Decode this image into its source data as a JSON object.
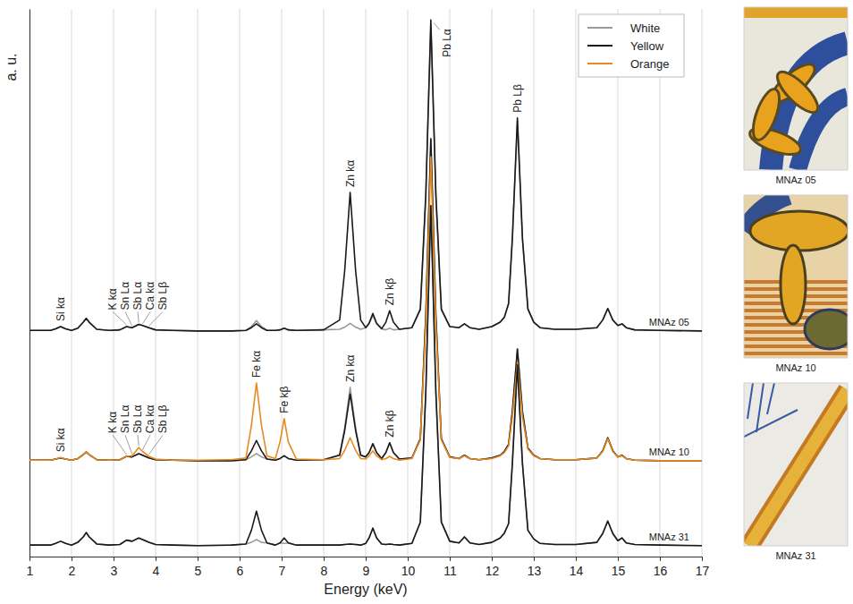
{
  "chart_data": {
    "type": "line",
    "xlabel": "Energy (keV)",
    "ylabel": "a. u.",
    "xlim": [
      1,
      17
    ],
    "ylim": [
      0,
      100
    ],
    "xticks": [
      1,
      2,
      3,
      4,
      5,
      6,
      7,
      8,
      9,
      10,
      11,
      12,
      13,
      14,
      15,
      16,
      17
    ],
    "grid": true,
    "legend": "upper right",
    "tick_labels": "x",
    "x": [
      1.0,
      1.5,
      1.62,
      1.74,
      1.86,
      2.0,
      2.15,
      2.28,
      2.35,
      2.42,
      2.6,
      2.9,
      3.15,
      3.31,
      3.44,
      3.6,
      3.69,
      3.84,
      4.0,
      4.4,
      5.0,
      5.8,
      6.15,
      6.28,
      6.4,
      6.52,
      6.65,
      6.85,
      6.96,
      7.06,
      7.16,
      7.35,
      8.0,
      8.38,
      8.5,
      8.63,
      8.76,
      8.88,
      9.0,
      9.08,
      9.17,
      9.26,
      9.38,
      9.48,
      9.57,
      9.66,
      9.8,
      10.1,
      10.3,
      10.43,
      10.55,
      10.67,
      10.8,
      11.0,
      11.22,
      11.35,
      11.48,
      11.7,
      12.0,
      12.2,
      12.3,
      12.4,
      12.49,
      12.61,
      12.73,
      12.86,
      13.0,
      13.15,
      13.5,
      14.0,
      14.5,
      14.64,
      14.76,
      14.88,
      15.0,
      15.1,
      15.2,
      15.4,
      16.0,
      17.0
    ],
    "samples": [
      {
        "name": "MNAz 05",
        "series": [
          {
            "name": "White",
            "color": "#9a9a9a",
            "values": [
              41.3,
              41.3,
              41.6,
              42.0,
              41.6,
              41.3,
              41.7,
              42.8,
              43.5,
              42.8,
              41.5,
              41.3,
              41.4,
              42.0,
              41.8,
              42.4,
              42.2,
              41.8,
              41.4,
              41.3,
              41.2,
              41.2,
              41.3,
              42.0,
              43.1,
              42.0,
              41.3,
              41.3,
              41.4,
              41.7,
              41.4,
              41.3,
              41.4,
              41.5,
              41.9,
              42.6,
              41.9,
              41.5,
              41.8,
              42.5,
              44.0,
              42.5,
              41.6,
              41.4,
              41.7,
              41.4,
              41.5,
              41.8,
              45.0,
              65.5,
              97.0,
              65.5,
              45.0,
              42.0,
              41.8,
              42.5,
              41.8,
              41.5,
              42.0,
              42.8,
              43.7,
              46.2,
              57.8,
              79.5,
              57.8,
              45.2,
              42.8,
              41.8,
              41.5,
              41.5,
              41.8,
              43.2,
              45.3,
              43.2,
              42.2,
              42.5,
              41.8,
              41.4,
              41.3,
              41.2
            ]
          },
          {
            "name": "Yellow",
            "color": "#1a1a1a",
            "values": [
              41.3,
              41.3,
              41.6,
              42.0,
              41.6,
              41.3,
              41.7,
              42.8,
              43.5,
              42.8,
              41.5,
              41.3,
              41.4,
              42.0,
              41.8,
              42.4,
              42.2,
              41.8,
              41.4,
              41.3,
              41.2,
              41.2,
              41.3,
              41.8,
              42.5,
              41.8,
              41.3,
              41.3,
              41.4,
              41.7,
              41.4,
              41.3,
              41.4,
              43.2,
              52.2,
              66.5,
              52.2,
              43.2,
              41.8,
              42.6,
              44.4,
              42.6,
              41.6,
              42.8,
              44.9,
              42.8,
              41.5,
              41.8,
              45.2,
              66.2,
              98.0,
              66.2,
              45.2,
              42.0,
              41.8,
              42.5,
              41.8,
              41.5,
              42.0,
              42.8,
              43.7,
              46.2,
              58.2,
              80.1,
              58.2,
              45.2,
              42.8,
              41.8,
              41.5,
              41.5,
              41.8,
              43.2,
              45.3,
              43.2,
              42.2,
              42.5,
              41.8,
              41.4,
              41.3,
              41.2
            ]
          }
        ],
        "peaks": [
          {
            "label": "Si kα",
            "x": 1.74
          },
          {
            "label": "K kα",
            "x": 3.31
          },
          {
            "label": "Sn Lα",
            "x": 3.44
          },
          {
            "label": "Sb Lα",
            "x": 3.6
          },
          {
            "label": "Ca kα",
            "x": 3.69
          },
          {
            "label": "Sb Lβ",
            "x": 3.84
          },
          {
            "label": "Zn kα",
            "x": 8.63
          },
          {
            "label": "Zn kβ",
            "x": 9.57
          },
          {
            "label": "Pb Lα",
            "x": 10.55
          },
          {
            "label": "Pb Lβ",
            "x": 12.61
          }
        ]
      },
      {
        "name": "MNAz 10",
        "series": [
          {
            "name": "White",
            "color": "#9a9a9a",
            "values": [
              17.6,
              17.6,
              17.8,
              18.0,
              17.8,
              17.6,
              17.9,
              18.6,
              19.1,
              18.6,
              17.7,
              17.6,
              17.7,
              18.3,
              18.2,
              18.8,
              18.5,
              18.0,
              17.7,
              17.6,
              17.5,
              17.5,
              17.7,
              18.2,
              18.8,
              18.2,
              17.8,
              17.6,
              17.9,
              18.4,
              17.9,
              17.6,
              17.7,
              18.6,
              23.5,
              30.9,
              23.5,
              18.6,
              18.2,
              19.0,
              20.6,
              19.0,
              17.9,
              19.0,
              20.8,
              19.0,
              17.8,
              18.0,
              21.5,
              44.0,
              76.3,
              44.0,
              21.5,
              18.2,
              17.9,
              18.5,
              17.9,
              17.7,
              18.0,
              18.5,
              19.2,
              20.5,
              26.5,
              37.9,
              26.5,
              19.8,
              18.5,
              17.9,
              17.7,
              17.7,
              18.0,
              19.3,
              21.7,
              19.3,
              18.2,
              18.5,
              17.9,
              17.6,
              17.5,
              17.5
            ]
          },
          {
            "name": "Yellow",
            "color": "#1a1a1a",
            "values": [
              17.6,
              17.6,
              17.8,
              18.0,
              17.8,
              17.6,
              17.9,
              18.6,
              19.1,
              18.6,
              17.7,
              17.6,
              17.7,
              18.3,
              18.2,
              18.8,
              18.5,
              18.0,
              17.7,
              17.6,
              17.5,
              17.5,
              17.7,
              19.3,
              21.2,
              19.3,
              17.8,
              17.6,
              17.9,
              18.4,
              17.9,
              17.6,
              17.7,
              18.5,
              23.0,
              29.7,
              23.0,
              18.5,
              18.2,
              19.0,
              20.6,
              19.0,
              17.9,
              19.0,
              20.8,
              19.0,
              17.8,
              18.0,
              21.5,
              44.0,
              76.3,
              44.0,
              21.5,
              18.2,
              17.9,
              18.5,
              17.9,
              17.7,
              18.0,
              18.5,
              19.2,
              20.5,
              26.5,
              37.9,
              26.5,
              19.8,
              18.5,
              17.9,
              17.7,
              17.7,
              18.0,
              19.3,
              21.7,
              19.3,
              18.2,
              18.5,
              17.9,
              17.6,
              17.5,
              17.5
            ]
          },
          {
            "name": "Orange",
            "color": "#e8891f",
            "values": [
              17.6,
              17.6,
              17.8,
              18.1,
              17.8,
              17.6,
              17.9,
              18.6,
              19.1,
              18.6,
              17.7,
              17.6,
              17.7,
              18.3,
              18.4,
              19.9,
              19.2,
              18.3,
              17.8,
              17.6,
              17.6,
              17.7,
              18.0,
              23.9,
              31.7,
              23.9,
              18.4,
              17.9,
              20.9,
              25.2,
              20.9,
              17.8,
              17.7,
              17.9,
              19.4,
              21.7,
              19.4,
              17.9,
              17.8,
              18.4,
              19.3,
              18.4,
              17.7,
              17.9,
              18.3,
              17.9,
              17.6,
              17.9,
              21.3,
              42.5,
              73.0,
              42.5,
              21.3,
              18.1,
              17.9,
              18.4,
              17.9,
              17.7,
              17.9,
              18.4,
              19.0,
              20.2,
              25.5,
              35.5,
              25.5,
              19.6,
              18.4,
              17.9,
              17.7,
              17.7,
              18.0,
              19.2,
              21.5,
              19.2,
              18.2,
              18.4,
              17.9,
              17.6,
              17.5,
              17.5
            ]
          }
        ],
        "peaks": [
          {
            "label": "Si kα",
            "x": 1.74
          },
          {
            "label": "K kα",
            "x": 3.31
          },
          {
            "label": "Sn Lα",
            "x": 3.44
          },
          {
            "label": "Sb Lα",
            "x": 3.6
          },
          {
            "label": "Ca kα",
            "x": 3.69
          },
          {
            "label": "Sb Lβ",
            "x": 3.84
          },
          {
            "label": "Fe kα",
            "x": 6.4
          },
          {
            "label": "Fe kβ",
            "x": 7.06
          },
          {
            "label": "Zn kα",
            "x": 8.63
          },
          {
            "label": "Zn kβ",
            "x": 9.57
          }
        ]
      },
      {
        "name": "MNAz 31",
        "series": [
          {
            "name": "White",
            "color": "#9a9a9a",
            "values": [
              2.1,
              2.1,
              2.4,
              2.8,
              2.4,
              2.1,
              2.6,
              3.6,
              4.4,
              3.6,
              2.3,
              2.1,
              2.2,
              3.0,
              2.8,
              3.4,
              3.1,
              2.6,
              2.2,
              2.1,
              2.0,
              2.1,
              2.3,
              2.6,
              3.1,
              2.6,
              2.5,
              2.1,
              2.5,
              2.4,
              2.5,
              2.1,
              2.1,
              2.1,
              2.2,
              2.3,
              2.2,
              2.1,
              2.4,
              3.4,
              5.2,
              3.4,
              2.3,
              2.2,
              2.3,
              2.2,
              2.1,
              2.4,
              6.3,
              30.0,
              64.1,
              30.0,
              6.3,
              2.8,
              2.5,
              3.6,
              2.5,
              2.2,
              2.6,
              3.4,
              4.3,
              6.0,
              17.0,
              35.0,
              17.0,
              4.8,
              3.2,
              2.4,
              2.2,
              2.2,
              2.6,
              4.2,
              6.5,
              4.2,
              2.9,
              3.4,
              2.5,
              2.2,
              2.1,
              2.0
            ]
          },
          {
            "name": "Yellow",
            "color": "#1a1a1a",
            "values": [
              2.1,
              2.1,
              2.4,
              2.8,
              2.4,
              2.1,
              2.6,
              3.6,
              4.4,
              3.6,
              2.3,
              2.1,
              2.2,
              3.0,
              2.8,
              3.4,
              3.1,
              2.6,
              2.2,
              2.1,
              2.0,
              2.1,
              2.3,
              4.8,
              8.3,
              4.8,
              2.5,
              2.1,
              2.5,
              3.4,
              2.5,
              2.1,
              2.1,
              2.1,
              2.2,
              2.3,
              2.2,
              2.1,
              2.4,
              3.4,
              5.2,
              3.4,
              2.3,
              2.2,
              2.3,
              2.2,
              2.1,
              2.4,
              6.3,
              30.0,
              64.1,
              30.0,
              6.3,
              2.8,
              2.5,
              3.6,
              2.5,
              2.2,
              2.6,
              3.4,
              4.3,
              6.0,
              17.0,
              35.0,
              17.0,
              4.8,
              3.2,
              2.4,
              2.2,
              2.2,
              2.6,
              4.2,
              6.5,
              4.2,
              2.9,
              3.4,
              2.5,
              2.2,
              2.1,
              2.0
            ]
          }
        ],
        "peaks": []
      }
    ]
  },
  "images": [
    {
      "caption": "MNAz 05"
    },
    {
      "caption": "MNAz 10"
    },
    {
      "caption": "MNAz 31"
    }
  ]
}
